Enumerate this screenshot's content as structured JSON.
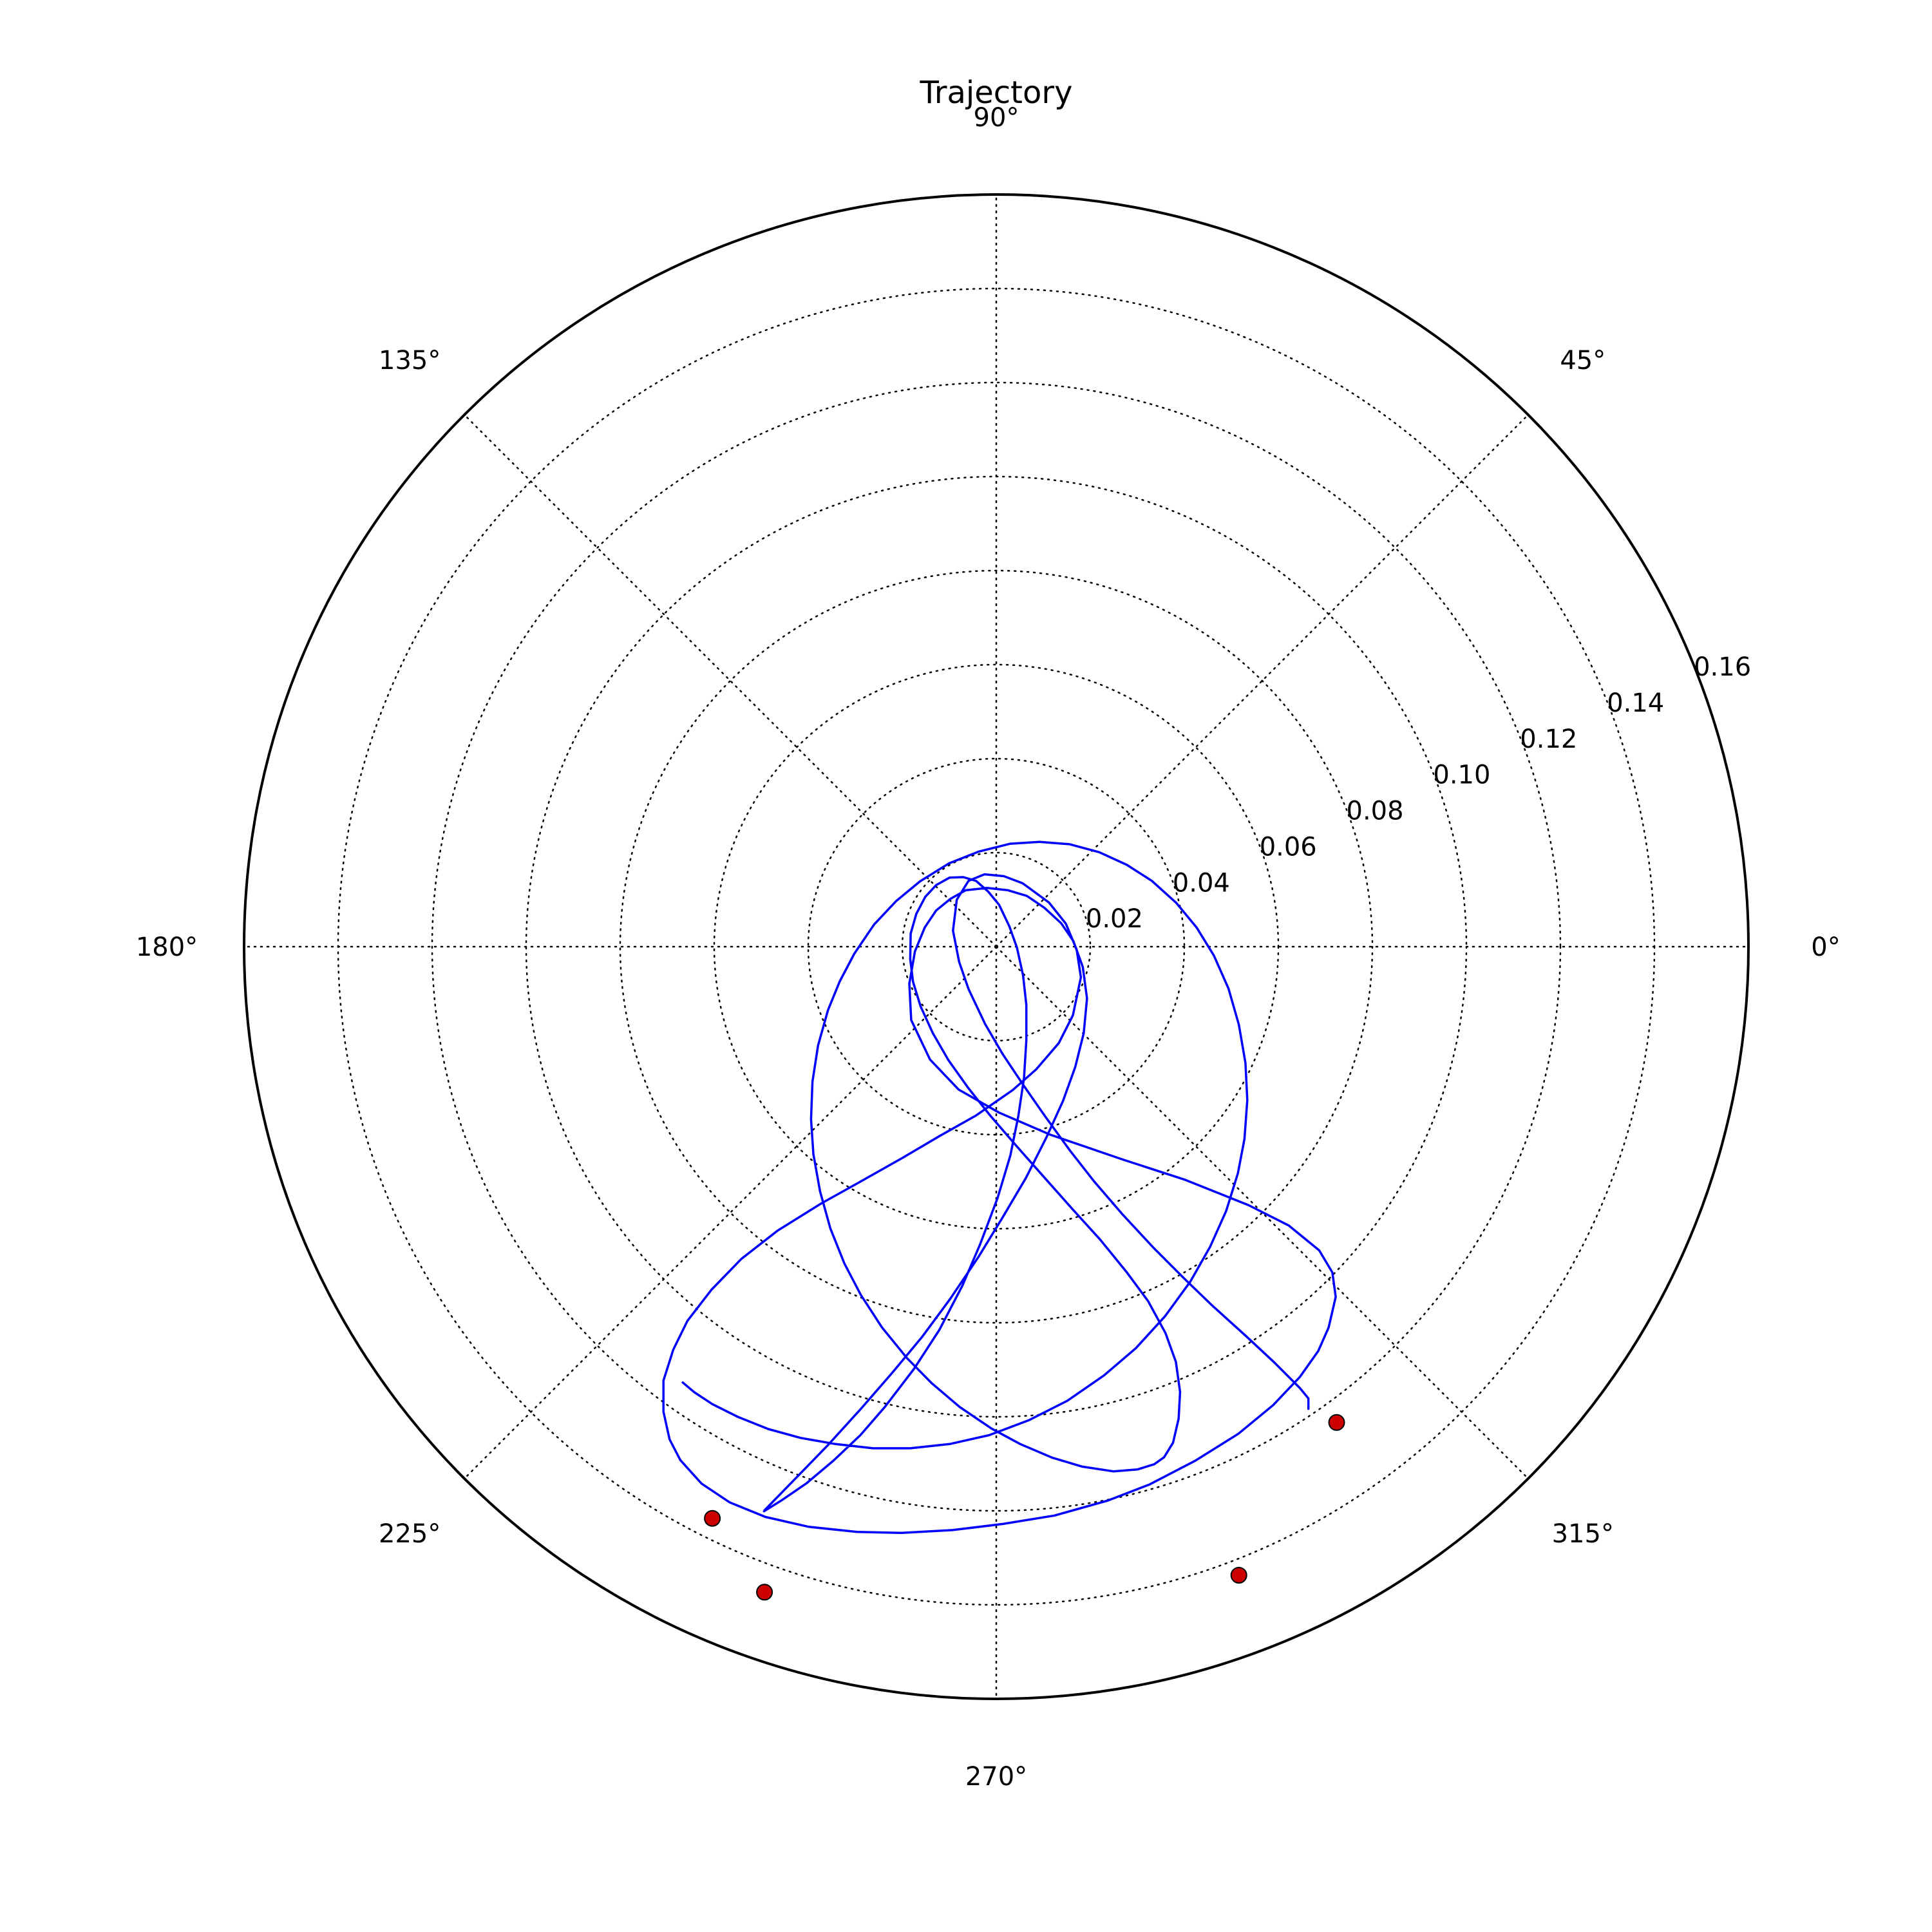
{
  "chart_data": {
    "type": "polar-line",
    "title": "Trajectory",
    "theta_ticks": [
      {
        "deg": 0,
        "label": "0°"
      },
      {
        "deg": 45,
        "label": "45°"
      },
      {
        "deg": 90,
        "label": "90°"
      },
      {
        "deg": 135,
        "label": "135°"
      },
      {
        "deg": 180,
        "label": "180°"
      },
      {
        "deg": 225,
        "label": "225°"
      },
      {
        "deg": 270,
        "label": "270°"
      },
      {
        "deg": 315,
        "label": "315°"
      }
    ],
    "r_ticks": [
      {
        "r": 0.02,
        "label": "0.02"
      },
      {
        "r": 0.04,
        "label": "0.04"
      },
      {
        "r": 0.06,
        "label": "0.06"
      },
      {
        "r": 0.08,
        "label": "0.08"
      },
      {
        "r": 0.1,
        "label": "0.10"
      },
      {
        "r": 0.12,
        "label": "0.12"
      },
      {
        "r": 0.14,
        "label": "0.14"
      },
      {
        "r": 0.16,
        "label": "0.16"
      }
    ],
    "rlim": [
      0,
      0.16
    ],
    "grid": true,
    "line_color": "#0000ff",
    "marker_color": "#cc0000",
    "trajectory_xy": [
      [
        0.0664,
        -0.0983
      ],
      [
        0.0664,
        -0.0961
      ],
      [
        0.0646,
        -0.0939
      ],
      [
        0.0591,
        -0.0884
      ],
      [
        0.0532,
        -0.0829
      ],
      [
        0.0459,
        -0.0763
      ],
      [
        0.0401,
        -0.0707
      ],
      [
        0.0335,
        -0.0641
      ],
      [
        0.0269,
        -0.057
      ],
      [
        0.0208,
        -0.0499
      ],
      [
        0.0157,
        -0.0434
      ],
      [
        0.0104,
        -0.0361
      ],
      [
        0.0058,
        -0.0295
      ],
      [
        0.0014,
        -0.0229
      ],
      [
        -0.0024,
        -0.0164
      ],
      [
        -0.0059,
        -0.009
      ],
      [
        -0.0079,
        -0.0032
      ],
      [
        -0.0092,
        0.0034
      ],
      [
        -0.0084,
        0.01
      ],
      [
        -0.0059,
        0.014
      ],
      [
        -0.0025,
        0.0154
      ],
      [
        0.0016,
        0.015
      ],
      [
        0.0056,
        0.0135
      ],
      [
        0.0112,
        0.0094
      ],
      [
        0.0148,
        0.0049
      ],
      [
        0.0171,
        -0.0006
      ],
      [
        0.018,
        -0.0065
      ],
      [
        0.0163,
        -0.0146
      ],
      [
        0.0133,
        -0.0205
      ],
      [
        0.0085,
        -0.0261
      ],
      [
        0.0035,
        -0.0305
      ],
      [
        -0.0043,
        -0.0359
      ],
      [
        -0.0121,
        -0.0403
      ],
      [
        -0.0199,
        -0.0449
      ],
      [
        -0.0293,
        -0.0502
      ],
      [
        -0.0372,
        -0.0546
      ],
      [
        -0.0465,
        -0.0604
      ],
      [
        -0.0542,
        -0.0664
      ],
      [
        -0.0606,
        -0.073
      ],
      [
        -0.0657,
        -0.0796
      ],
      [
        -0.0687,
        -0.0857
      ],
      [
        -0.0708,
        -0.0923
      ],
      [
        -0.0708,
        -0.0989
      ],
      [
        -0.0695,
        -0.1048
      ],
      [
        -0.0672,
        -0.1092
      ],
      [
        -0.0627,
        -0.1142
      ],
      [
        -0.0567,
        -0.1182
      ],
      [
        -0.0491,
        -0.1213
      ],
      [
        -0.0399,
        -0.1234
      ],
      [
        -0.0296,
        -0.1245
      ],
      [
        -0.0201,
        -0.1247
      ],
      [
        -0.0093,
        -0.1241
      ],
      [
        0.0014,
        -0.1228
      ],
      [
        0.0124,
        -0.121
      ],
      [
        0.0238,
        -0.1178
      ],
      [
        0.0326,
        -0.1144
      ],
      [
        0.0424,
        -0.1093
      ],
      [
        0.0515,
        -0.1036
      ],
      [
        0.0589,
        -0.0975
      ],
      [
        0.0646,
        -0.0915
      ],
      [
        0.0685,
        -0.086
      ],
      [
        0.0707,
        -0.081
      ],
      [
        0.0722,
        -0.0745
      ],
      [
        0.0715,
        -0.0693
      ],
      [
        0.0687,
        -0.0646
      ],
      [
        0.0622,
        -0.0593
      ],
      [
        0.0537,
        -0.055
      ],
      [
        0.0402,
        -0.0496
      ],
      [
        0.0267,
        -0.0452
      ],
      [
        0.0115,
        -0.04
      ],
      [
        0.0006,
        -0.0353
      ],
      [
        -0.008,
        -0.0304
      ],
      [
        -0.0141,
        -0.024
      ],
      [
        -0.0181,
        -0.0156
      ],
      [
        -0.0185,
        -0.0079
      ],
      [
        -0.0173,
        -0.001
      ],
      [
        -0.0152,
        0.0041
      ],
      [
        -0.0128,
        0.0077
      ],
      [
        -0.0097,
        0.0102
      ],
      [
        -0.0065,
        0.012
      ],
      [
        -0.002,
        0.0125
      ],
      [
        0.0025,
        0.012
      ],
      [
        0.0065,
        0.0108
      ],
      [
        0.0102,
        0.0083
      ],
      [
        0.0138,
        0.005
      ],
      [
        0.0164,
        0.0012
      ],
      [
        0.0184,
        -0.0043
      ],
      [
        0.0193,
        -0.011
      ],
      [
        0.0186,
        -0.0184
      ],
      [
        0.0168,
        -0.0256
      ],
      [
        0.0142,
        -0.0328
      ],
      [
        0.0107,
        -0.0405
      ],
      [
        0.0063,
        -0.0492
      ],
      [
        0.0014,
        -0.0575
      ],
      [
        -0.0038,
        -0.066
      ],
      [
        -0.0098,
        -0.0749
      ],
      [
        -0.0157,
        -0.0829
      ],
      [
        -0.0221,
        -0.0906
      ],
      [
        -0.0288,
        -0.0983
      ],
      [
        -0.0357,
        -0.1059
      ],
      [
        -0.0425,
        -0.1129
      ],
      [
        -0.0492,
        -0.1198
      ],
      [
        -0.0494,
        -0.1201
      ],
      [
        -0.0457,
        -0.1178
      ],
      [
        -0.0403,
        -0.1141
      ],
      [
        -0.0346,
        -0.1093
      ],
      [
        -0.0289,
        -0.1039
      ],
      [
        -0.0237,
        -0.0979
      ],
      [
        -0.0175,
        -0.0898
      ],
      [
        -0.0121,
        -0.0815
      ],
      [
        -0.0072,
        -0.0721
      ],
      [
        -0.0034,
        -0.0632
      ],
      [
        0.0003,
        -0.0534
      ],
      [
        0.003,
        -0.0444
      ],
      [
        0.0047,
        -0.036
      ],
      [
        0.0059,
        -0.0279
      ],
      [
        0.0064,
        -0.0199
      ],
      [
        0.0064,
        -0.0124
      ],
      [
        0.0057,
        -0.0061
      ],
      [
        0.0044,
        -0.0002
      ],
      [
        0.0028,
        0.0043
      ],
      [
        0.0006,
        0.0089
      ],
      [
        -0.0017,
        0.0117
      ],
      [
        -0.0043,
        0.014
      ],
      [
        -0.007,
        0.0148
      ],
      [
        -0.0099,
        0.0147
      ],
      [
        -0.0128,
        0.0131
      ],
      [
        -0.0151,
        0.0106
      ],
      [
        -0.017,
        0.007
      ],
      [
        -0.0182,
        0.0028
      ],
      [
        -0.0183,
        -0.0026
      ],
      [
        -0.0177,
        -0.0075
      ],
      [
        -0.0161,
        -0.0127
      ],
      [
        -0.0135,
        -0.0184
      ],
      [
        -0.0102,
        -0.0241
      ],
      [
        -0.006,
        -0.03
      ],
      [
        -0.0013,
        -0.0359
      ],
      [
        0.0043,
        -0.0424
      ],
      [
        0.0098,
        -0.0486
      ],
      [
        0.0161,
        -0.0557
      ],
      [
        0.0221,
        -0.0623
      ],
      [
        0.0278,
        -0.0693
      ],
      [
        0.0323,
        -0.0754
      ],
      [
        0.036,
        -0.0822
      ],
      [
        0.0382,
        -0.0883
      ],
      [
        0.0391,
        -0.0947
      ],
      [
        0.0388,
        -0.1004
      ],
      [
        0.0376,
        -0.1055
      ],
      [
        0.0357,
        -0.1086
      ],
      [
        0.0336,
        -0.1101
      ],
      [
        0.03,
        -0.1112
      ],
      [
        0.0249,
        -0.1116
      ],
      [
        0.0183,
        -0.1106
      ],
      [
        0.0119,
        -0.1087
      ],
      [
        0.0051,
        -0.1058
      ],
      [
        -0.001,
        -0.1025
      ],
      [
        -0.0078,
        -0.0979
      ],
      [
        -0.0138,
        -0.0928
      ],
      [
        -0.019,
        -0.0875
      ],
      [
        -0.0243,
        -0.081
      ],
      [
        -0.0288,
        -0.0741
      ],
      [
        -0.0323,
        -0.0674
      ],
      [
        -0.0353,
        -0.0599
      ],
      [
        -0.0375,
        -0.052
      ],
      [
        -0.0389,
        -0.0441
      ],
      [
        -0.0394,
        -0.0367
      ],
      [
        -0.0391,
        -0.0287
      ],
      [
        -0.0379,
        -0.021
      ],
      [
        -0.0358,
        -0.0135
      ],
      [
        -0.0333,
        -0.0074
      ],
      [
        -0.0302,
        -0.0015
      ],
      [
        -0.026,
        0.0047
      ],
      [
        -0.0213,
        0.0097
      ],
      [
        -0.0162,
        0.0139
      ],
      [
        -0.0101,
        0.0177
      ],
      [
        -0.0038,
        0.0202
      ],
      [
        0.003,
        0.0219
      ],
      [
        0.0092,
        0.0223
      ],
      [
        0.0156,
        0.0218
      ],
      [
        0.0219,
        0.0201
      ],
      [
        0.0278,
        0.0174
      ],
      [
        0.0331,
        0.014
      ],
      [
        0.0383,
        0.0093
      ],
      [
        0.0426,
        0.0041
      ],
      [
        0.0463,
        -0.0019
      ],
      [
        0.0494,
        -0.0089
      ],
      [
        0.0516,
        -0.0166
      ],
      [
        0.053,
        -0.0247
      ],
      [
        0.0534,
        -0.0326
      ],
      [
        0.0528,
        -0.0409
      ],
      [
        0.0514,
        -0.0482
      ],
      [
        0.0489,
        -0.0562
      ],
      [
        0.0455,
        -0.0638
      ],
      [
        0.0413,
        -0.0712
      ],
      [
        0.0359,
        -0.0786
      ],
      [
        0.0297,
        -0.0854
      ],
      [
        0.0229,
        -0.0912
      ],
      [
        0.0151,
        -0.0966
      ],
      [
        0.007,
        -0.1007
      ],
      [
        -0.0015,
        -0.1039
      ],
      [
        -0.0099,
        -0.1058
      ],
      [
        -0.0183,
        -0.1067
      ],
      [
        -0.0262,
        -0.1067
      ],
      [
        -0.0342,
        -0.1058
      ],
      [
        -0.0416,
        -0.1045
      ],
      [
        -0.0485,
        -0.1026
      ],
      [
        -0.055,
        -0.1
      ],
      [
        -0.0604,
        -0.0973
      ],
      [
        -0.0642,
        -0.0948
      ],
      [
        -0.0667,
        -0.0927
      ]
    ],
    "markers_xy": [
      [
        0.0724,
        -0.1012
      ],
      [
        -0.0604,
        -0.1216
      ],
      [
        -0.0493,
        -0.1373
      ],
      [
        0.0516,
        -0.1337
      ]
    ]
  }
}
